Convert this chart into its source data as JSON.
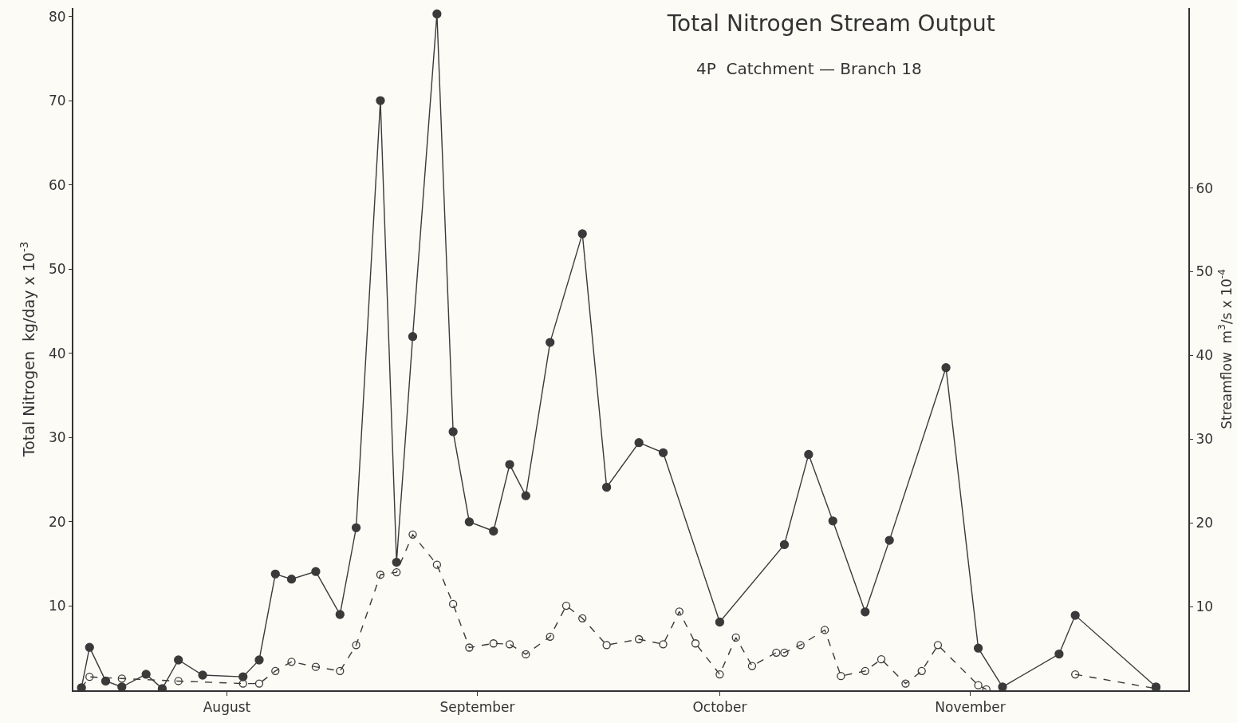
{
  "chart_data": {
    "type": "line",
    "title": "Total Nitrogen Stream Output",
    "subtitle": "4P  Catchment — Branch 18",
    "ylabel": "Total Nitrogen  kg/day x 10$^{-3}$",
    "y2label": "Streamflow  m$^{3}$/s x 10$^{-4}$",
    "xlim": [
      "--07-13",
      "--11-28"
    ],
    "xticks": [
      {
        "value": "--08-01",
        "label": "August"
      },
      {
        "value": "--09-01",
        "label": "September"
      },
      {
        "value": "--10-01",
        "label": "October"
      },
      {
        "value": "--11-01",
        "label": "November"
      }
    ],
    "ylim": [
      0,
      81
    ],
    "yticks": [
      10,
      20,
      30,
      40,
      50,
      60,
      70,
      80
    ],
    "y2lim": [
      0,
      81.5
    ],
    "y2ticks": [
      10,
      20,
      30,
      40,
      50,
      60
    ],
    "grid": false,
    "series": [
      {
        "color": "#3a3a3a",
        "line_style": "solid",
        "marker": "circle",
        "x": [
          "--07-14",
          "--07-15",
          "--07-17",
          "--07-19",
          "--07-22",
          "--07-24",
          "--07-26",
          "--07-29",
          "--08-03",
          "--08-05",
          "--08-07",
          "--08-09",
          "--08-12",
          "--08-15",
          "--08-17",
          "--08-20",
          "--08-22",
          "--08-24",
          "--08-27",
          "--08-29",
          "--08-31",
          "--09-03",
          "--09-05",
          "--09-07",
          "--09-10",
          "--09-14",
          "--09-17",
          "--09-21",
          "--09-24",
          "--10-01",
          "--10-09",
          "--10-12",
          "--10-15",
          "--10-19",
          "--10-22",
          "--10-29",
          "--11-02",
          "--11-05",
          "--11-12",
          "--11-14",
          "--11-24"
        ],
        "values": [
          0.3,
          5.1,
          1.1,
          0.4,
          1.9,
          0.2,
          3.6,
          1.8,
          1.6,
          3.6,
          13.8,
          13.2,
          14.1,
          9.0,
          19.3,
          70.0,
          15.2,
          42.0,
          80.3,
          30.7,
          20.0,
          18.9,
          26.8,
          23.1,
          41.3,
          54.2,
          24.1,
          29.4,
          28.2,
          8.1,
          17.3,
          28.0,
          20.1,
          9.3,
          17.8,
          38.3,
          5.0,
          0.4,
          4.3,
          8.9,
          0.4
        ]
      },
      {
        "color": "#3a3a3a",
        "line_style": "dashed",
        "marker": "open circle",
        "axis": "y2",
        "x": [
          "--07-14",
          "--07-15",
          "--07-19",
          "--07-26",
          "--08-03",
          "--08-05",
          "--08-07",
          "--08-09",
          "--08-12",
          "--08-15",
          "--08-17",
          "--08-20",
          "--08-22",
          "--08-24",
          "--08-27",
          "--08-29",
          "--08-31",
          "--09-03",
          "--09-05",
          "--09-07",
          "--09-10",
          "--09-12",
          "--09-14",
          "--09-17",
          "--09-21",
          "--09-24",
          "--09-26",
          "--09-28",
          "--10-01",
          "--10-03",
          "--10-05",
          "--10-08",
          "--10-09",
          "--10-11",
          "--10-14",
          "--10-16",
          "--10-19",
          "--10-21",
          "--10-24",
          "--10-26",
          "--10-28",
          "--11-02",
          "--11-03",
          "--11-09",
          "--11-14",
          "--11-24"
        ],
        "values": [
          0.3,
          1.6,
          1.4,
          1.1,
          0.8,
          0.8,
          2.3,
          3.4,
          2.8,
          2.3,
          5.4,
          13.8,
          14.1,
          18.6,
          15.0,
          10.3,
          5.1,
          5.6,
          5.5,
          4.3,
          6.4,
          10.1,
          8.6,
          5.4,
          6.1,
          5.5,
          9.4,
          5.6,
          1.9,
          6.3,
          2.9,
          4.5,
          4.5,
          5.4,
          7.2,
          1.7,
          2.3,
          3.7,
          0.8,
          2.3,
          5.4,
          0.6,
          0.1,
          null,
          1.9,
          0.2
        ]
      }
    ]
  }
}
